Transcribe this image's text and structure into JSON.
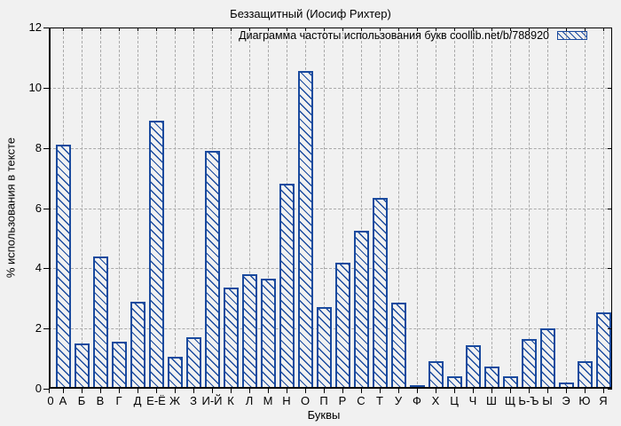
{
  "figure": {
    "background_color": "#f1f1f1",
    "bar_color": "#1a4a9e",
    "gridline_color": "#a9a9a9"
  },
  "chart_data": {
    "type": "bar",
    "title": "Беззащитный (Иосиф Рихтер)",
    "legend_label": "Диаграмма частоты использования букв coollib.net/b/788920",
    "legend_position": "top-right-inside",
    "xlabel": "Буквы",
    "ylabel": "% использования в тексте",
    "origin_label": "0",
    "ylim": [
      0,
      12
    ],
    "yticks": [
      0,
      2,
      4,
      6,
      8,
      10,
      12
    ],
    "grid": true,
    "categories": [
      "А",
      "Б",
      "В",
      "Г",
      "Д",
      "Е-Ё",
      "Ж",
      "З",
      "И-Й",
      "К",
      "Л",
      "М",
      "Н",
      "О",
      "П",
      "Р",
      "С",
      "Т",
      "У",
      "Ф",
      "Х",
      "Ц",
      "Ч",
      "Ш",
      "Щ",
      "Ь-Ъ",
      "Ы",
      "Э",
      "Ю",
      "Я"
    ],
    "values": [
      8.1,
      1.5,
      4.4,
      1.55,
      2.9,
      8.9,
      1.05,
      1.7,
      7.9,
      3.35,
      3.8,
      3.65,
      6.8,
      10.55,
      2.7,
      4.2,
      5.25,
      6.35,
      2.85,
      0.1,
      0.9,
      0.4,
      1.45,
      0.75,
      0.4,
      1.65,
      2.0,
      0.2,
      0.9,
      2.55
    ]
  }
}
